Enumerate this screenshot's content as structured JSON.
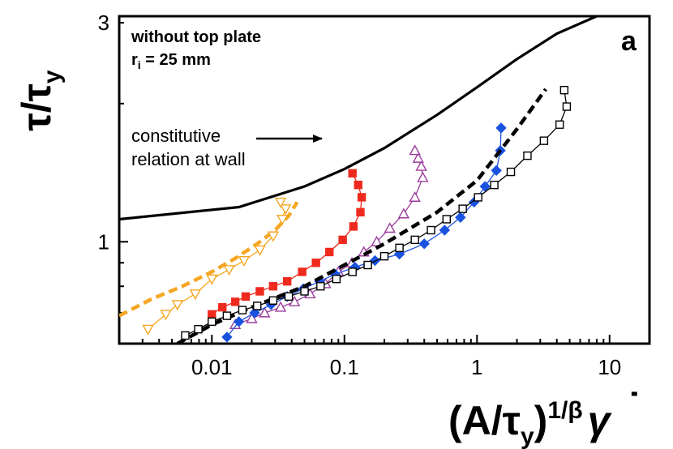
{
  "chart_data": {
    "type": "line",
    "xscale": "log",
    "yscale": "log",
    "xlim": [
      0.002,
      20
    ],
    "ylim": [
      0.6,
      3.1
    ],
    "x_ticks": [
      {
        "value": 0.01,
        "label": "0.01"
      },
      {
        "value": 0.1,
        "label": "0.1"
      },
      {
        "value": 1,
        "label": "1"
      },
      {
        "value": 10,
        "label": "10"
      }
    ],
    "y_ticks": [
      {
        "value": 1,
        "label": "1"
      },
      {
        "value": 3,
        "label": "3"
      }
    ],
    "ylabel": {
      "main": "τ/τ",
      "sub": "y"
    },
    "xlabel": {
      "open": "(A/τ",
      "sub": "y",
      "close": ")",
      "sup": "1/β",
      "gamma": "γ",
      "dot": "˙"
    },
    "panel_letter": "a",
    "annotation_lines": [
      "without top plate",
      "r",
      "i",
      " = 25 mm"
    ],
    "annotation_arrow_text": [
      "constitutive",
      "relation at wall"
    ],
    "series": [
      {
        "name": "constitutive relation at wall",
        "style": "solid",
        "color": "#000000",
        "marker": "none",
        "x": [
          0.002,
          0.016,
          0.05,
          0.1,
          0.2,
          0.5,
          1,
          2,
          4,
          8
        ],
        "y": [
          1.12,
          1.19,
          1.32,
          1.44,
          1.6,
          1.89,
          2.17,
          2.5,
          2.84,
          3.1
        ]
      },
      {
        "name": "dashed fit (orange)",
        "style": "dashed",
        "color": "#f5a623",
        "marker": "none",
        "x": [
          0.002,
          0.0035,
          0.006,
          0.01,
          0.015,
          0.022,
          0.03,
          0.038,
          0.044
        ],
        "y": [
          0.69,
          0.75,
          0.8,
          0.86,
          0.92,
          0.99,
          1.06,
          1.14,
          1.22
        ]
      },
      {
        "name": "open down triangles",
        "style": "solid",
        "color": "#f5a623",
        "marker": "triangle-down-open",
        "x": [
          0.0033,
          0.0045,
          0.0055,
          0.0075,
          0.01,
          0.0135,
          0.0175,
          0.023,
          0.029,
          0.034,
          0.036,
          0.033
        ],
        "y": [
          0.645,
          0.695,
          0.73,
          0.77,
          0.83,
          0.87,
          0.91,
          0.96,
          1.03,
          1.12,
          1.18,
          1.22
        ]
      },
      {
        "name": "filled squares (red)",
        "style": "solid",
        "color": "#ee2a1e",
        "marker": "square-filled",
        "x": [
          0.01,
          0.012,
          0.015,
          0.018,
          0.023,
          0.029,
          0.037,
          0.048,
          0.061,
          0.077,
          0.097,
          0.117,
          0.132,
          0.135,
          0.127,
          0.115
        ],
        "y": [
          0.695,
          0.72,
          0.74,
          0.76,
          0.78,
          0.8,
          0.82,
          0.86,
          0.9,
          0.95,
          1.01,
          1.08,
          1.16,
          1.25,
          1.33,
          1.41
        ]
      },
      {
        "name": "open up triangles (purple)",
        "style": "solid",
        "color": "#9a3d9c",
        "marker": "triangle-up-open",
        "x": [
          0.015,
          0.02,
          0.025,
          0.033,
          0.042,
          0.055,
          0.072,
          0.09,
          0.114,
          0.14,
          0.175,
          0.22,
          0.28,
          0.34,
          0.39,
          0.38,
          0.36,
          0.34
        ],
        "y": [
          0.66,
          0.68,
          0.7,
          0.72,
          0.74,
          0.77,
          0.81,
          0.86,
          0.9,
          0.95,
          1.0,
          1.07,
          1.15,
          1.25,
          1.38,
          1.46,
          1.52,
          1.58
        ]
      },
      {
        "name": "filled diamonds (blue)",
        "style": "solid",
        "color": "#1a52e0",
        "marker": "diamond-filled",
        "x": [
          0.013,
          0.016,
          0.021,
          0.028,
          0.037,
          0.049,
          0.065,
          0.085,
          0.12,
          0.17,
          0.26,
          0.4,
          0.57,
          0.75,
          0.95,
          1.15,
          1.4,
          1.5,
          1.52
        ],
        "y": [
          0.62,
          0.67,
          0.7,
          0.73,
          0.76,
          0.79,
          0.82,
          0.85,
          0.88,
          0.91,
          0.94,
          0.99,
          1.06,
          1.13,
          1.22,
          1.32,
          1.43,
          1.58,
          1.77
        ]
      },
      {
        "name": "dashed fit (black)",
        "style": "dashed",
        "color": "#000000",
        "marker": "none",
        "x": [
          0.0055,
          0.01,
          0.02,
          0.05,
          0.1,
          0.2,
          0.5,
          1,
          2,
          3.3
        ],
        "y": [
          0.6,
          0.66,
          0.72,
          0.8,
          0.89,
          0.99,
          1.16,
          1.36,
          1.76,
          2.15
        ]
      },
      {
        "name": "open squares (black)",
        "style": "solid",
        "color": "#000000",
        "marker": "square-open",
        "x": [
          0.0063,
          0.0079,
          0.01,
          0.013,
          0.017,
          0.022,
          0.029,
          0.038,
          0.05,
          0.066,
          0.087,
          0.115,
          0.15,
          0.2,
          0.26,
          0.34,
          0.45,
          0.59,
          0.78,
          1.02,
          1.35,
          1.8,
          2.4,
          3.2,
          4.2,
          4.75,
          4.55
        ],
        "y": [
          0.625,
          0.645,
          0.67,
          0.69,
          0.71,
          0.725,
          0.745,
          0.76,
          0.78,
          0.8,
          0.83,
          0.86,
          0.89,
          0.93,
          0.97,
          1.01,
          1.06,
          1.12,
          1.18,
          1.25,
          1.33,
          1.42,
          1.54,
          1.66,
          1.8,
          1.97,
          2.14
        ]
      }
    ]
  }
}
